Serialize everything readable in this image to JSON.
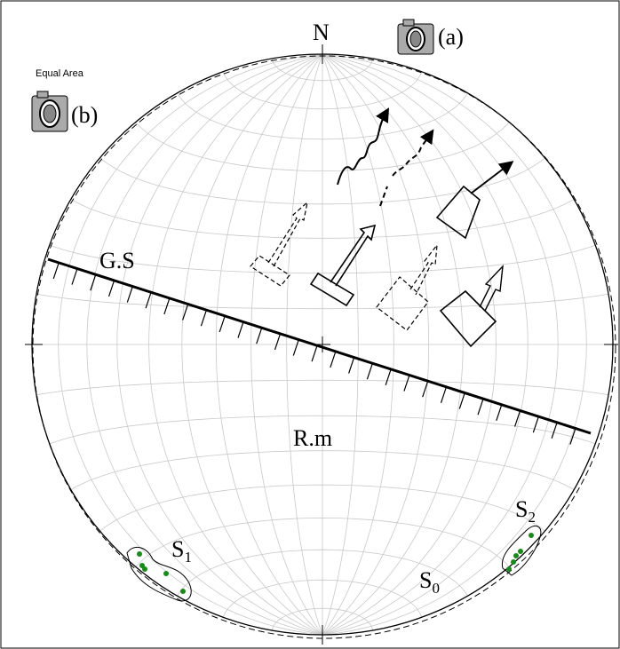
{
  "labels": {
    "north": "N",
    "camera_a": "(a)",
    "equal_area": "Equal Area",
    "camera_b": "(b)",
    "gs": "G.S",
    "rm": "R.m",
    "s1": {
      "base": "S",
      "sub": "1"
    },
    "s2": {
      "base": "S",
      "sub": "2"
    },
    "s0": {
      "base": "S",
      "sub": "0"
    }
  }
}
